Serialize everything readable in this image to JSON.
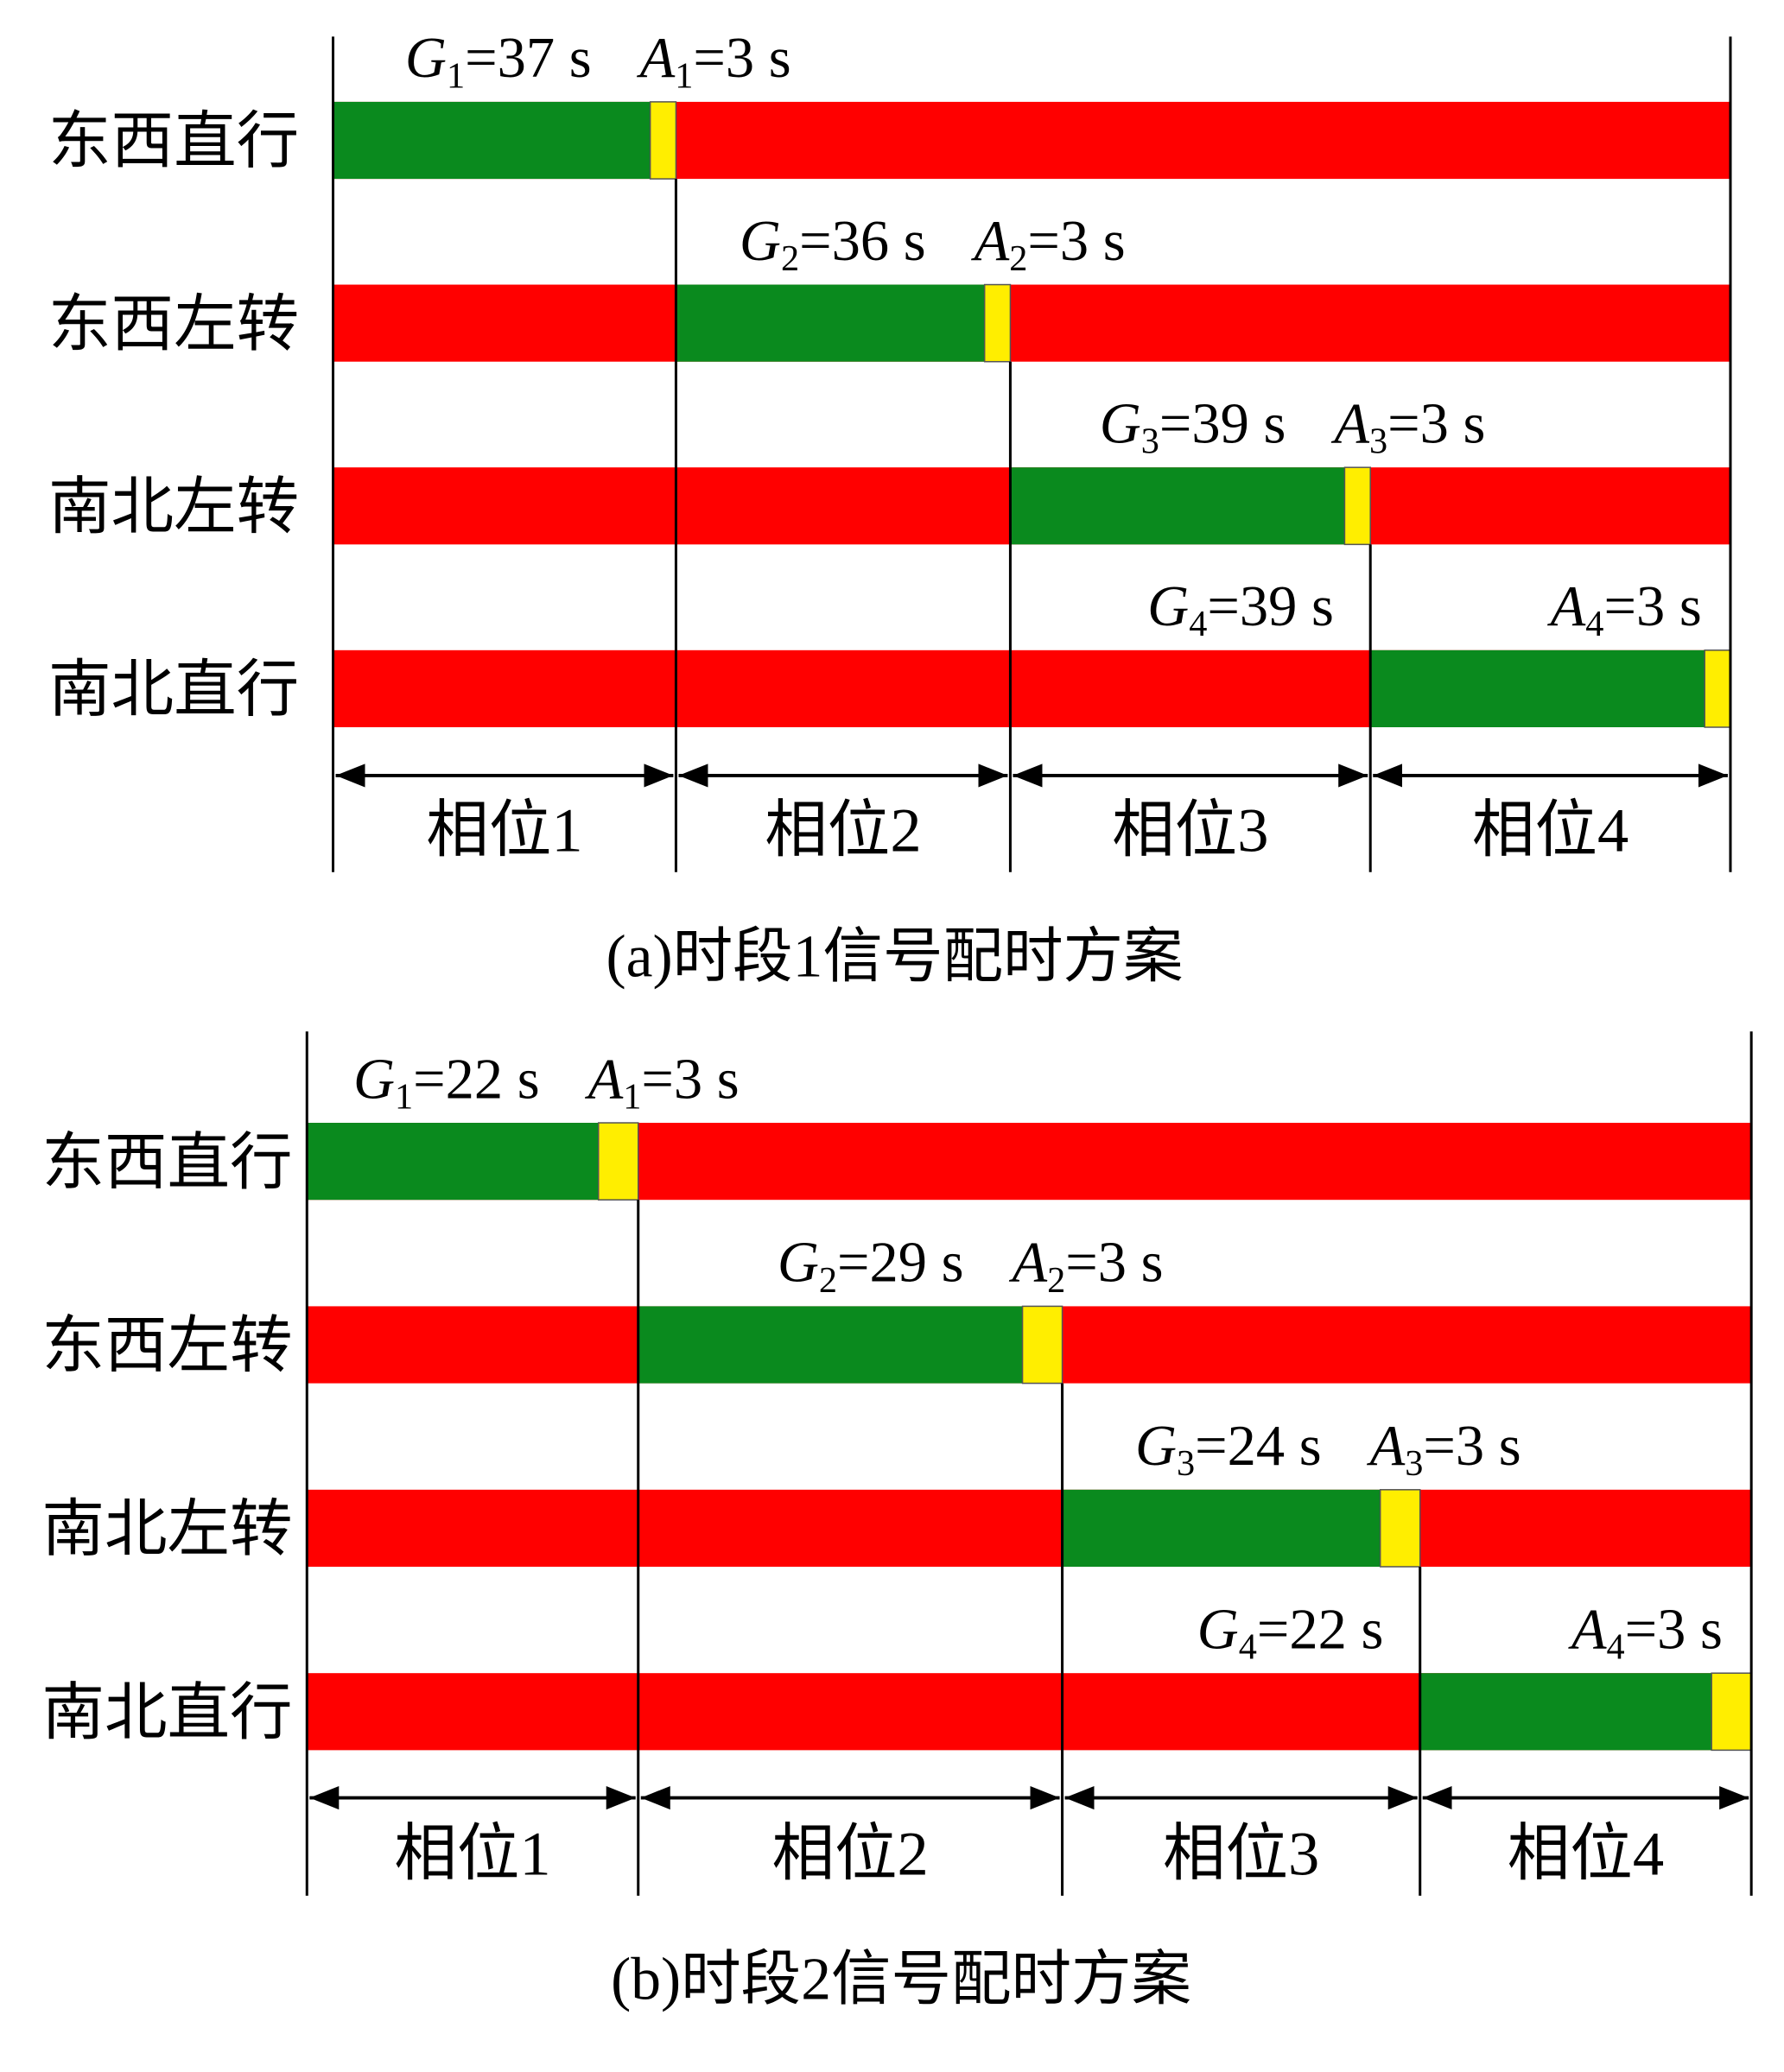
{
  "colors": {
    "green": "#0a8a1e",
    "yellow": "#ffee00",
    "red": "#ff0000",
    "line": "#000000"
  },
  "movements": [
    "东西直行",
    "东西左转",
    "南北左转",
    "南北直行"
  ],
  "panels": [
    {
      "caption": "(a)时段1信号配时方案",
      "phases": [
        {
          "label": "相位1",
          "green": 37,
          "amber": 3,
          "g_letter": "G",
          "a_letter": "A",
          "sub": "1",
          "g_value": "=37 s",
          "a_value": "=3 s"
        },
        {
          "label": "相位2",
          "green": 36,
          "amber": 3,
          "g_letter": "G",
          "a_letter": "A",
          "sub": "2",
          "g_value": "=36 s",
          "a_value": "=3 s"
        },
        {
          "label": "相位3",
          "green": 39,
          "amber": 3,
          "g_letter": "G",
          "a_letter": "A",
          "sub": "3",
          "g_value": "=39 s",
          "a_value": "=3 s"
        },
        {
          "label": "相位4",
          "green": 39,
          "amber": 3,
          "g_letter": "G",
          "a_letter": "A",
          "sub": "4",
          "g_value": "=39 s",
          "a_value": "=3 s"
        }
      ]
    },
    {
      "caption": "(b)时段2信号配时方案",
      "phases": [
        {
          "label": "相位1",
          "green": 22,
          "amber": 3,
          "g_letter": "G",
          "a_letter": "A",
          "sub": "1",
          "g_value": "=22 s",
          "a_value": "=3 s"
        },
        {
          "label": "相位2",
          "green": 29,
          "amber": 3,
          "g_letter": "G",
          "a_letter": "A",
          "sub": "2",
          "g_value": "=29 s",
          "a_value": "=3 s"
        },
        {
          "label": "相位3",
          "green": 24,
          "amber": 3,
          "g_letter": "G",
          "a_letter": "A",
          "sub": "3",
          "g_value": "=24 s",
          "a_value": "=3 s"
        },
        {
          "label": "相位4",
          "green": 22,
          "amber": 3,
          "g_letter": "G",
          "a_letter": "A",
          "sub": "4",
          "g_value": "=22 s",
          "a_value": "=3 s"
        }
      ]
    }
  ]
}
